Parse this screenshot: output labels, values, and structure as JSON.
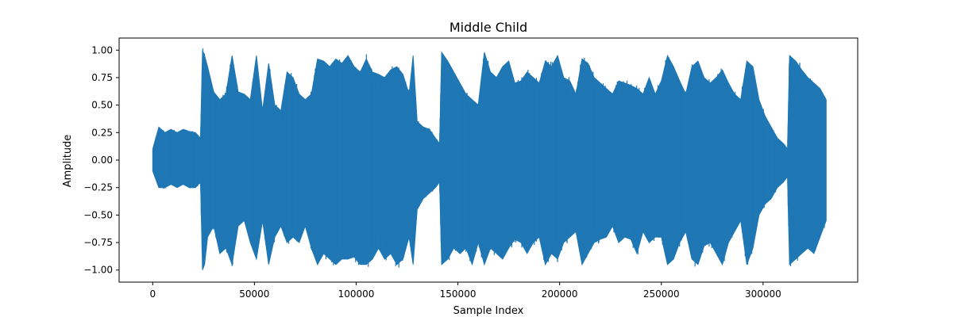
{
  "chart_data": {
    "type": "line",
    "title": "Middle Child",
    "xlabel": "Sample Index",
    "ylabel": "Amplitude",
    "xlim": [
      -16500,
      346500
    ],
    "ylim": [
      -1.11,
      1.11
    ],
    "x_ticks": [
      0,
      50000,
      100000,
      150000,
      200000,
      250000,
      300000
    ],
    "x_tick_labels": [
      "0",
      "50000",
      "100000",
      "150000",
      "200000",
      "250000",
      "300000"
    ],
    "y_ticks": [
      1.0,
      0.75,
      0.5,
      0.25,
      0.0,
      -0.25,
      -0.5,
      -0.75,
      -1.0
    ],
    "y_tick_labels": [
      "1.00",
      "0.75",
      "0.50",
      "0.25",
      "0.00",
      "−0.25",
      "−0.50",
      "−0.75",
      "−1.00"
    ],
    "grid": false,
    "series": [
      {
        "color": "#1f77b4",
        "envelope": {
          "x": [
            0,
            3000,
            6000,
            9000,
            12000,
            15000,
            18000,
            21000,
            23500,
            24500,
            25500,
            27000,
            30000,
            33000,
            36000,
            39000,
            42000,
            45000,
            48000,
            51000,
            54000,
            57000,
            60000,
            63000,
            66000,
            69000,
            72000,
            75000,
            78000,
            81000,
            84000,
            87000,
            90000,
            93000,
            96000,
            99000,
            102000,
            105000,
            108000,
            111000,
            114000,
            117000,
            120000,
            123000,
            126000,
            128000,
            130000,
            133000,
            136000,
            139000,
            141000,
            142000,
            145000,
            148000,
            151000,
            154000,
            157000,
            160000,
            163000,
            166000,
            169000,
            172000,
            175000,
            178000,
            181000,
            184000,
            187000,
            190000,
            193000,
            196000,
            199000,
            202000,
            205000,
            208000,
            211000,
            214000,
            217000,
            220000,
            223000,
            226000,
            229000,
            232000,
            235000,
            238000,
            241000,
            244000,
            247000,
            250000,
            253000,
            256000,
            259000,
            262000,
            265000,
            268000,
            271000,
            274000,
            277000,
            280000,
            283000,
            286000,
            289000,
            292000,
            295000,
            298000,
            301000,
            304000,
            307000,
            310000,
            312000,
            313000,
            316000,
            319000,
            322000,
            325000,
            328000,
            331000
          ],
          "upper": [
            0.1,
            0.3,
            0.25,
            0.28,
            0.25,
            0.28,
            0.26,
            0.25,
            0.2,
            1.0,
            0.95,
            0.85,
            0.62,
            0.55,
            0.6,
            0.95,
            0.62,
            0.6,
            0.55,
            0.95,
            0.45,
            0.88,
            0.5,
            0.45,
            0.8,
            0.75,
            0.6,
            0.55,
            0.6,
            0.92,
            0.9,
            0.85,
            0.92,
            0.88,
            0.95,
            0.85,
            0.8,
            0.92,
            0.8,
            0.78,
            0.75,
            0.82,
            0.85,
            0.78,
            0.6,
            0.95,
            0.35,
            0.3,
            0.28,
            0.2,
            0.15,
            0.98,
            0.9,
            0.8,
            0.7,
            0.6,
            0.55,
            0.5,
            0.98,
            0.8,
            0.75,
            0.85,
            0.9,
            0.7,
            0.72,
            0.8,
            0.75,
            0.7,
            0.9,
            0.85,
            0.95,
            0.75,
            0.72,
            0.6,
            0.92,
            0.88,
            0.75,
            0.7,
            0.65,
            0.6,
            0.72,
            0.7,
            0.68,
            0.65,
            0.6,
            0.75,
            0.6,
            0.72,
            0.95,
            0.85,
            0.72,
            0.6,
            0.85,
            0.9,
            0.75,
            0.7,
            0.75,
            0.82,
            0.7,
            0.6,
            0.55,
            0.9,
            0.85,
            0.55,
            0.4,
            0.3,
            0.2,
            0.15,
            0.1,
            0.95,
            0.9,
            0.82,
            0.75,
            0.7,
            0.65,
            0.55
          ],
          "lower": [
            -0.1,
            -0.25,
            -0.25,
            -0.22,
            -0.25,
            -0.22,
            -0.25,
            -0.25,
            -0.2,
            -1.0,
            -0.95,
            -0.7,
            -0.6,
            -0.85,
            -0.8,
            -0.95,
            -0.6,
            -0.55,
            -0.75,
            -0.9,
            -0.55,
            -0.95,
            -0.7,
            -0.6,
            -0.75,
            -0.7,
            -0.75,
            -0.6,
            -0.8,
            -0.95,
            -0.85,
            -0.9,
            -0.95,
            -0.9,
            -0.9,
            -0.88,
            -0.95,
            -0.95,
            -0.9,
            -0.8,
            -0.9,
            -0.85,
            -0.95,
            -0.9,
            -0.7,
            -0.95,
            -0.45,
            -0.35,
            -0.3,
            -0.25,
            -0.2,
            -0.95,
            -0.9,
            -0.8,
            -0.85,
            -0.8,
            -0.95,
            -0.75,
            -0.95,
            -0.8,
            -0.85,
            -0.9,
            -0.8,
            -0.72,
            -0.75,
            -0.85,
            -0.75,
            -0.7,
            -0.95,
            -0.85,
            -0.9,
            -0.75,
            -0.7,
            -0.65,
            -0.95,
            -0.85,
            -0.75,
            -0.72,
            -0.7,
            -0.6,
            -0.75,
            -0.7,
            -0.72,
            -0.85,
            -0.65,
            -0.75,
            -0.7,
            -0.7,
            -0.95,
            -0.9,
            -0.75,
            -0.65,
            -0.9,
            -0.95,
            -0.78,
            -0.75,
            -0.85,
            -0.95,
            -0.75,
            -0.65,
            -0.55,
            -0.95,
            -0.8,
            -0.5,
            -0.4,
            -0.35,
            -0.25,
            -0.2,
            -0.15,
            -0.95,
            -0.9,
            -0.85,
            -0.8,
            -0.85,
            -0.7,
            -0.55
          ]
        }
      }
    ]
  }
}
